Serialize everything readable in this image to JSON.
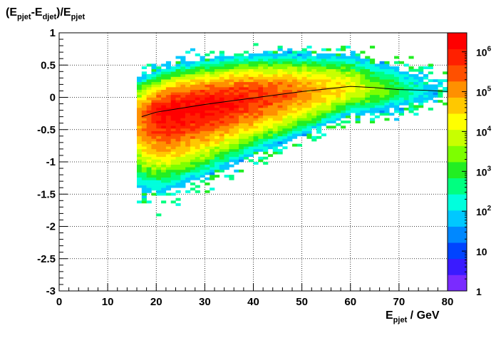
{
  "chart_data": {
    "type": "heatmap",
    "title": "",
    "ylabel": {
      "base": "(E",
      "sub1": "pjet",
      "mid": "-E",
      "sub2": "djet",
      "end": ")/E",
      "sub3": "pjet"
    },
    "xlabel": {
      "base": "E",
      "sub": "pjet",
      "end": " / GeV"
    },
    "xlim": [
      0,
      80
    ],
    "ylim": [
      -3,
      1
    ],
    "x_ticks": [
      "0",
      "10",
      "20",
      "30",
      "40",
      "50",
      "60",
      "70",
      "80"
    ],
    "y_ticks": [
      "-3",
      "-2.5",
      "-2",
      "-1.5",
      "-1",
      "-0.5",
      "0",
      "0.5",
      "1"
    ],
    "grid": true,
    "z_scale": "log",
    "z_range": [
      1,
      3000000
    ],
    "z_ticks": [
      {
        "value": 1,
        "base": "1",
        "exp": ""
      },
      {
        "value": 10,
        "base": "10",
        "exp": ""
      },
      {
        "value": 100,
        "base": "10",
        "exp": "2"
      },
      {
        "value": 1000,
        "base": "10",
        "exp": "3"
      },
      {
        "value": 10000,
        "base": "10",
        "exp": "4"
      },
      {
        "value": 100000,
        "base": "10",
        "exp": "5"
      },
      {
        "value": 1000000,
        "base": "10",
        "exp": "6"
      }
    ],
    "bins": {
      "x_min": 16,
      "x_max": 80,
      "x_width": 1,
      "y_width": 0.04
    },
    "density_model": {
      "x_start": 16.5,
      "peak_log10": 6.3,
      "ridge": {
        "x": [
          17,
          25,
          40,
          60,
          75
        ],
        "y": [
          -0.3,
          -0.18,
          0.0,
          0.15,
          0.1
        ]
      },
      "upper_sigma": 0.35,
      "lower_sigma_17": 0.65,
      "lower_sigma_60": 0.3,
      "peak_x": 24
    },
    "profile": {
      "x": [
        17,
        20,
        25,
        30,
        35,
        40,
        45,
        50,
        55,
        60,
        65,
        70,
        75,
        80
      ],
      "y": [
        -0.3,
        -0.23,
        -0.17,
        -0.11,
        -0.06,
        -0.01,
        0.04,
        0.09,
        0.13,
        0.17,
        0.15,
        0.12,
        0.11,
        0.09
      ]
    },
    "palette": [
      "#7a2bff",
      "#3a1bff",
      "#0044ff",
      "#0088ff",
      "#00c8ff",
      "#00ffdd",
      "#00ff80",
      "#22ee22",
      "#7dff00",
      "#c8ff00",
      "#ffff00",
      "#ffc800",
      "#ff9000",
      "#ff5000",
      "#ff2000",
      "#ff0000"
    ]
  }
}
